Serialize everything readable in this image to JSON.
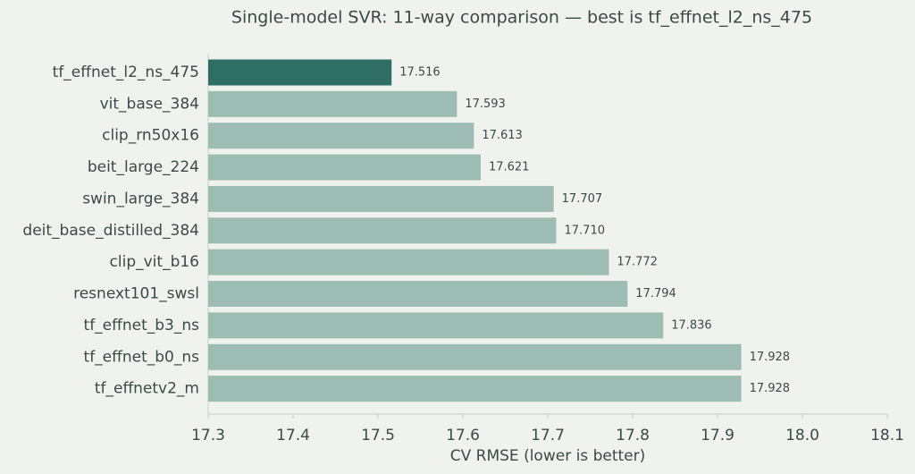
{
  "chart_data": {
    "type": "barh",
    "title": "Single-model SVR: 11-way comparison — best is tf_effnet_l2_ns_475",
    "xlabel": "CV RMSE (lower is better)",
    "categories": [
      "tf_effnet_l2_ns_475",
      "vit_base_384",
      "clip_rn50x16",
      "beit_large_224",
      "swin_large_384",
      "deit_base_distilled_384",
      "clip_vit_b16",
      "resnext101_swsl",
      "tf_effnet_b3_ns",
      "tf_effnet_b0_ns",
      "tf_effnetv2_m"
    ],
    "values": [
      17.516,
      17.593,
      17.613,
      17.621,
      17.707,
      17.71,
      17.772,
      17.794,
      17.836,
      17.928,
      17.928
    ],
    "value_labels": [
      "17.516",
      "17.593",
      "17.613",
      "17.621",
      "17.707",
      "17.710",
      "17.772",
      "17.794",
      "17.836",
      "17.928",
      "17.928"
    ],
    "colors": [
      "#2e6e63",
      "#9dbcb3",
      "#9dbcb3",
      "#9dbcb3",
      "#9dbcb3",
      "#9dbcb3",
      "#9dbcb3",
      "#9dbcb3",
      "#9dbcb3",
      "#9dbcb3",
      "#9dbcb3"
    ],
    "xlim": [
      17.3,
      18.1
    ],
    "xticks": [
      17.3,
      17.4,
      17.5,
      17.6,
      17.7,
      17.8,
      17.9,
      {
        "value": 18,
        "label": "18.0"
      },
      18.1
    ]
  }
}
